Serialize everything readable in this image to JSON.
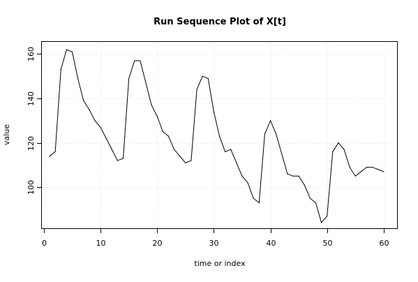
{
  "chart_data": {
    "type": "line",
    "title": "Run Sequence Plot of X[t]",
    "xlabel": "time or index",
    "ylabel": "value",
    "xlim": [
      -0.36,
      62.36
    ],
    "ylim": [
      81.5,
      165.5
    ],
    "x_ticks": [
      0,
      10,
      20,
      30,
      40,
      50,
      60
    ],
    "y_ticks": [
      100,
      120,
      140,
      160
    ],
    "x_tick_labels": [
      "0",
      "10",
      "20",
      "30",
      "40",
      "50",
      "60"
    ],
    "y_tick_labels": [
      "100",
      "120",
      "140",
      "160"
    ],
    "grid": true,
    "series": [
      {
        "line_color": "#000000",
        "x": [
          1,
          2,
          3,
          4,
          5,
          6,
          7,
          8,
          9,
          10,
          11,
          12,
          13,
          14,
          15,
          16,
          17,
          18,
          19,
          20,
          21,
          22,
          23,
          24,
          25,
          26,
          27,
          28,
          29,
          30,
          31,
          32,
          33,
          34,
          35,
          36,
          37,
          38,
          39,
          40,
          41,
          42,
          43,
          44,
          45,
          46,
          47,
          48,
          49,
          50,
          51,
          52,
          53,
          54,
          55,
          56,
          57,
          58,
          59,
          60
        ],
        "values": [
          114,
          116,
          153,
          162,
          161,
          149,
          139,
          135,
          130,
          127,
          122,
          117,
          112,
          113,
          149,
          157,
          157,
          147,
          137,
          132,
          125,
          123,
          117,
          114,
          111,
          112,
          144,
          150,
          149,
          134,
          123,
          116,
          117,
          111,
          105,
          102,
          95,
          93,
          124,
          130,
          124,
          115,
          106,
          105,
          105,
          101,
          95,
          93,
          84,
          87,
          116,
          120,
          117,
          109,
          105,
          107,
          109,
          109,
          108,
          107
        ]
      }
    ]
  }
}
